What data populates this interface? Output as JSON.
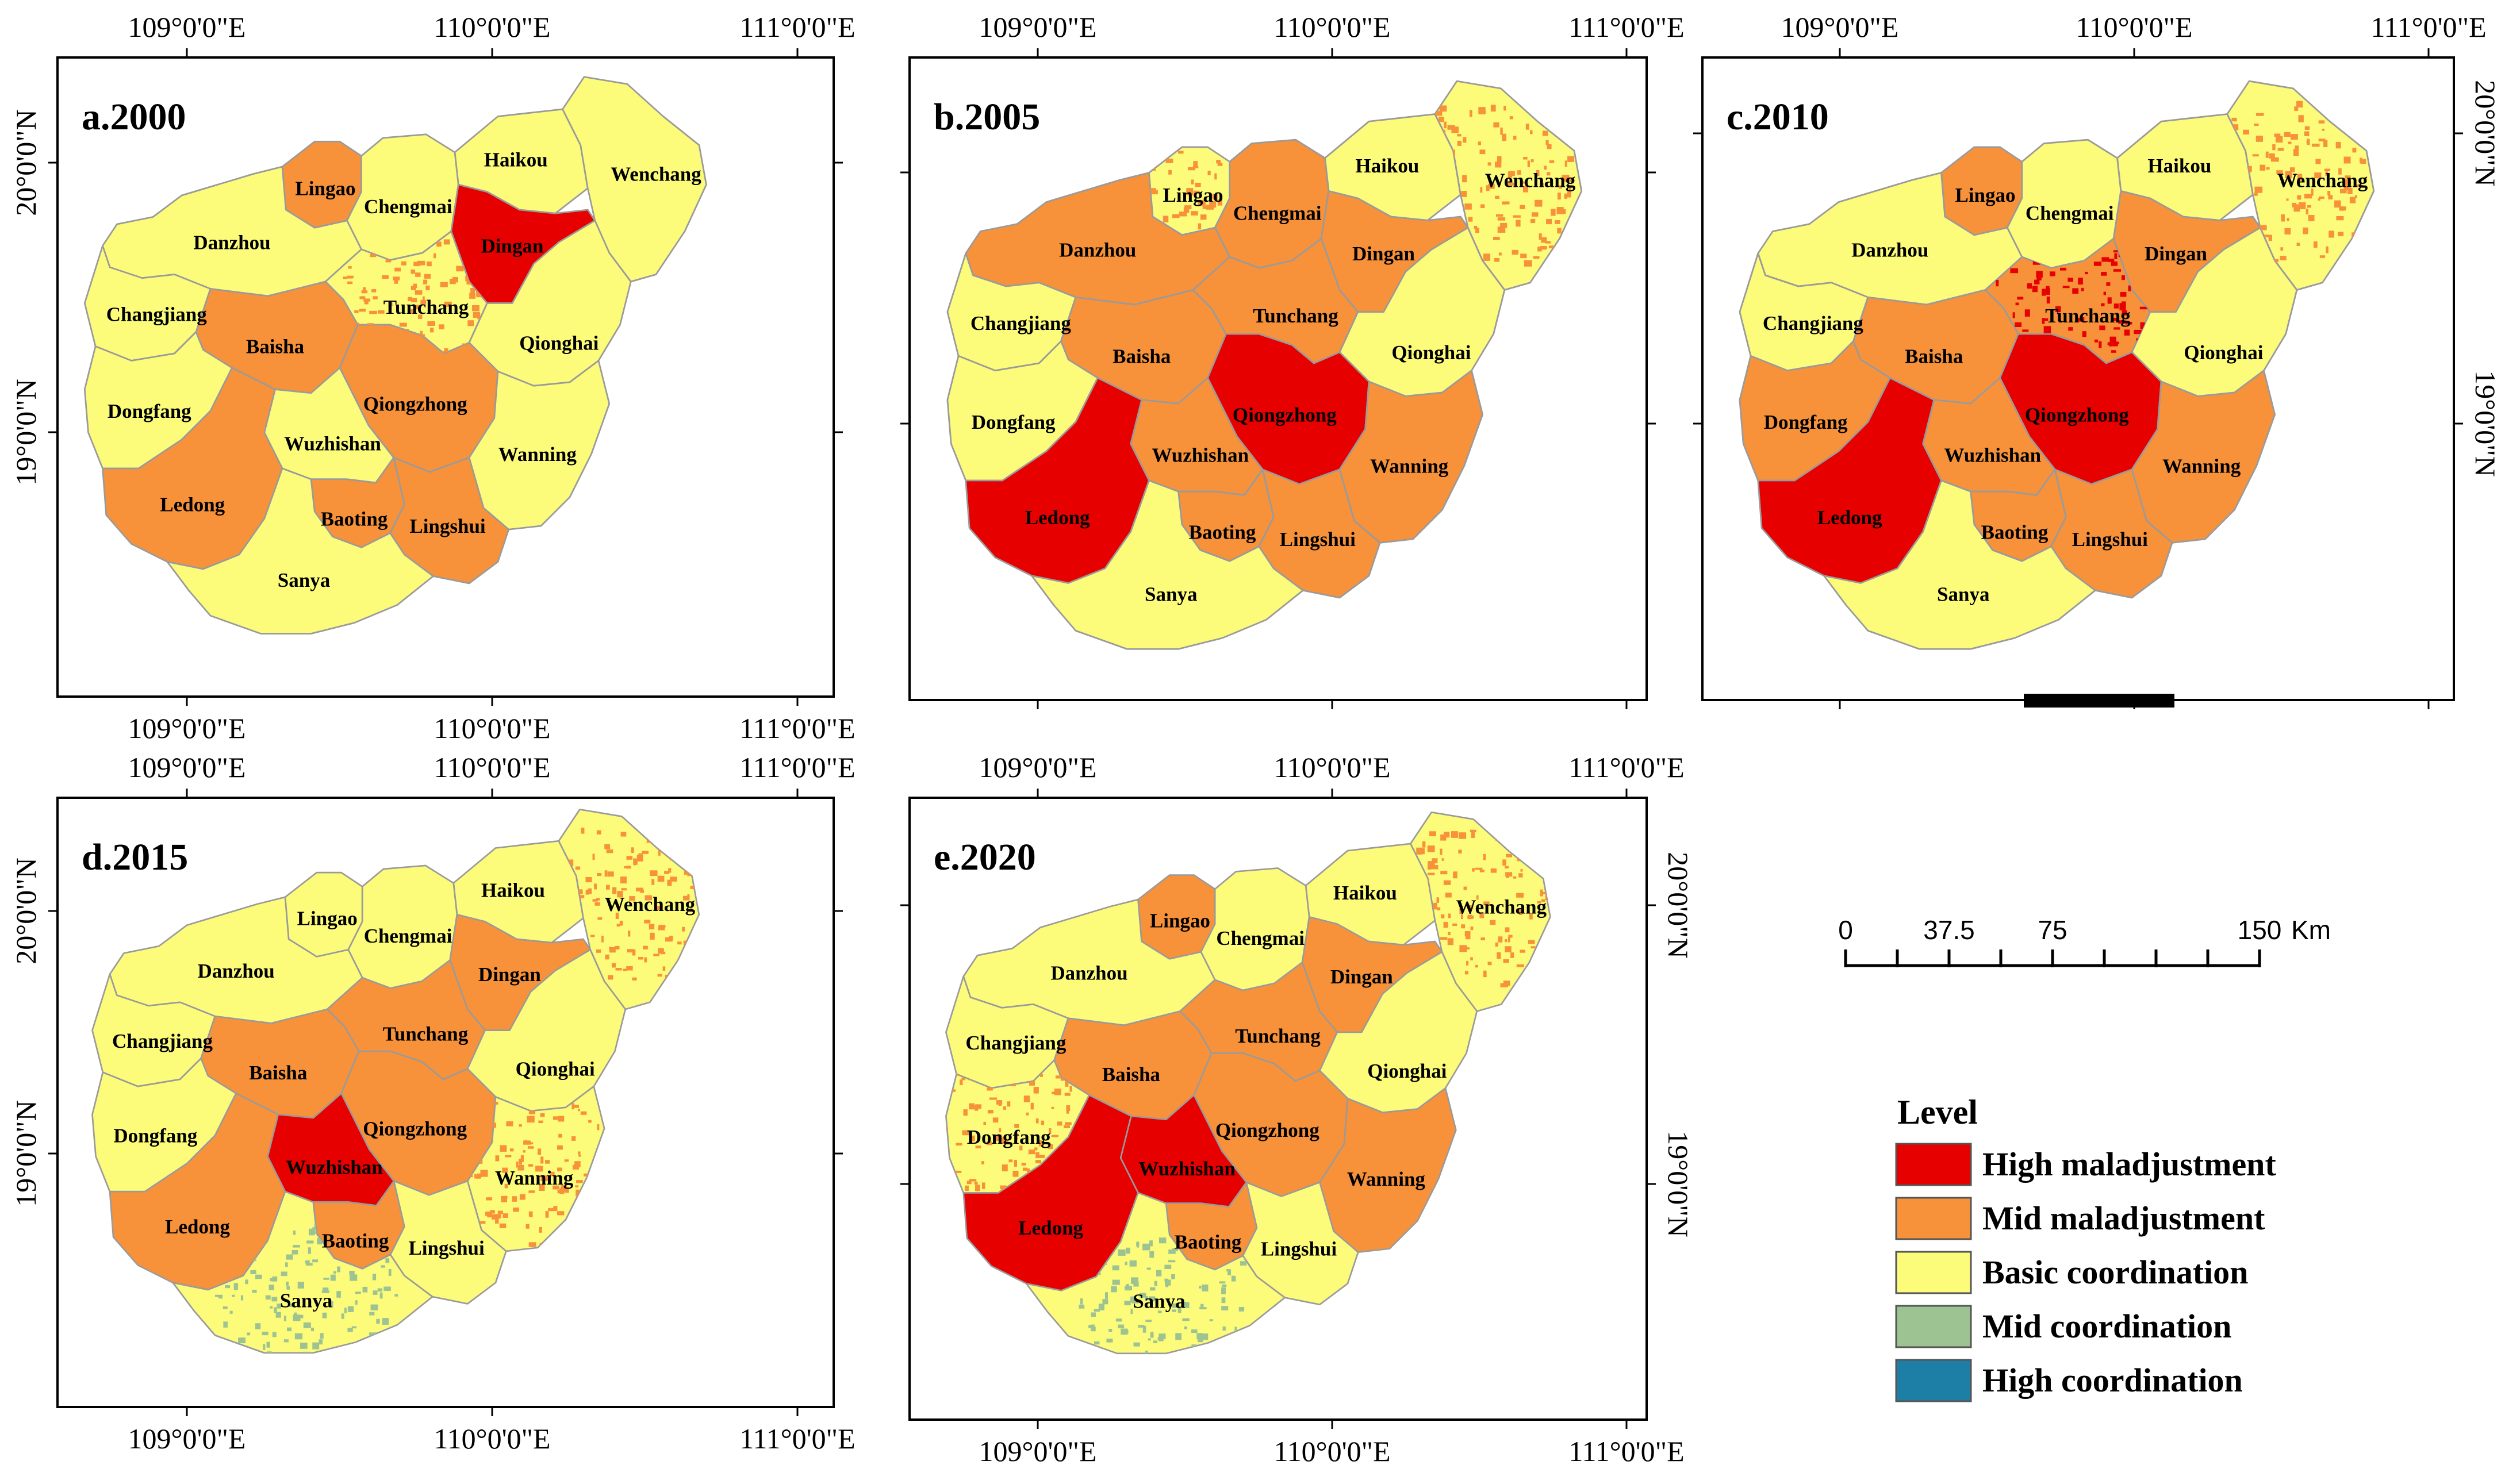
{
  "colors": {
    "high_maladjustment": "#E60000",
    "mid_maladjustment": "#F7923A",
    "basic_coordination": "#FCFB7A",
    "mid_coordination": "#9DC393",
    "high_coordination": "#1E7FA6",
    "boundary": "#9a9a9a",
    "frame": "#000000"
  },
  "axis_labels": {
    "lon_109": "109°0'0\"E",
    "lon_110": "110°0'0\"E",
    "lon_111": "111°0'0\"E",
    "lat_20": "20°0'0\"N",
    "lat_19": "19°0'0\"N"
  },
  "panels": [
    {
      "label": "a.2000",
      "lat_side": "left",
      "levels": {
        "Haikou": "basic_coordination",
        "Wenchang": "basic_coordination",
        "Lingao": "mid_maladjustment",
        "Chengmai": "basic_coordination",
        "Dingan": "high_maladjustment",
        "Danzhou": "basic_coordination",
        "Tunchang": "basic_coordination",
        "Qionghai": "basic_coordination",
        "Changjiang": "basic_coordination",
        "Baisha": "mid_maladjustment",
        "Qiongzhong": "mid_maladjustment",
        "Dongfang": "basic_coordination",
        "Wanning": "basic_coordination",
        "Wuzhishan": "basic_coordination",
        "Ledong": "mid_maladjustment",
        "Baoting": "mid_maladjustment",
        "Lingshui": "mid_maladjustment",
        "Sanya": "basic_coordination"
      },
      "speckles": [
        {
          "county": "Tunchang",
          "level": "mid_maladjustment"
        }
      ]
    },
    {
      "label": "b.2005",
      "lat_side": "none",
      "levels": {
        "Haikou": "basic_coordination",
        "Wenchang": "basic_coordination",
        "Lingao": "basic_coordination",
        "Chengmai": "mid_maladjustment",
        "Dingan": "mid_maladjustment",
        "Danzhou": "mid_maladjustment",
        "Tunchang": "mid_maladjustment",
        "Qionghai": "basic_coordination",
        "Changjiang": "basic_coordination",
        "Baisha": "mid_maladjustment",
        "Qiongzhong": "high_maladjustment",
        "Dongfang": "basic_coordination",
        "Wanning": "mid_maladjustment",
        "Wuzhishan": "mid_maladjustment",
        "Ledong": "high_maladjustment",
        "Baoting": "mid_maladjustment",
        "Lingshui": "mid_maladjustment",
        "Sanya": "basic_coordination"
      },
      "speckles": [
        {
          "county": "Lingao",
          "level": "mid_maladjustment"
        },
        {
          "county": "Wenchang",
          "level": "mid_maladjustment"
        }
      ]
    },
    {
      "label": "c.2010",
      "lat_side": "right",
      "levels": {
        "Haikou": "basic_coordination",
        "Wenchang": "basic_coordination",
        "Lingao": "mid_maladjustment",
        "Chengmai": "basic_coordination",
        "Dingan": "mid_maladjustment",
        "Danzhou": "basic_coordination",
        "Tunchang": "mid_maladjustment",
        "Qionghai": "basic_coordination",
        "Changjiang": "basic_coordination",
        "Baisha": "mid_maladjustment",
        "Qiongzhong": "high_maladjustment",
        "Dongfang": "mid_maladjustment",
        "Wanning": "mid_maladjustment",
        "Wuzhishan": "mid_maladjustment",
        "Ledong": "high_maladjustment",
        "Baoting": "mid_maladjustment",
        "Lingshui": "mid_maladjustment",
        "Sanya": "basic_coordination"
      },
      "speckles": [
        {
          "county": "Tunchang",
          "level": "high_maladjustment"
        },
        {
          "county": "Wenchang",
          "level": "mid_maladjustment"
        }
      ]
    },
    {
      "label": "d.2015",
      "lat_side": "left",
      "levels": {
        "Haikou": "basic_coordination",
        "Wenchang": "basic_coordination",
        "Lingao": "basic_coordination",
        "Chengmai": "basic_coordination",
        "Dingan": "mid_maladjustment",
        "Danzhou": "basic_coordination",
        "Tunchang": "mid_maladjustment",
        "Qionghai": "basic_coordination",
        "Changjiang": "basic_coordination",
        "Baisha": "mid_maladjustment",
        "Qiongzhong": "mid_maladjustment",
        "Dongfang": "basic_coordination",
        "Wanning": "basic_coordination",
        "Wuzhishan": "high_maladjustment",
        "Ledong": "mid_maladjustment",
        "Baoting": "mid_maladjustment",
        "Lingshui": "basic_coordination",
        "Sanya": "basic_coordination"
      },
      "speckles": [
        {
          "county": "Wenchang",
          "level": "mid_maladjustment"
        },
        {
          "county": "Wanning",
          "level": "mid_maladjustment"
        },
        {
          "county": "Sanya",
          "level": "mid_coordination"
        }
      ]
    },
    {
      "label": "e.2020",
      "lat_side": "right",
      "levels": {
        "Haikou": "basic_coordination",
        "Wenchang": "basic_coordination",
        "Lingao": "mid_maladjustment",
        "Chengmai": "basic_coordination",
        "Dingan": "mid_maladjustment",
        "Danzhou": "basic_coordination",
        "Tunchang": "mid_maladjustment",
        "Qionghai": "basic_coordination",
        "Changjiang": "basic_coordination",
        "Baisha": "mid_maladjustment",
        "Qiongzhong": "mid_maladjustment",
        "Dongfang": "basic_coordination",
        "Wanning": "mid_maladjustment",
        "Wuzhishan": "high_maladjustment",
        "Ledong": "high_maladjustment",
        "Baoting": "mid_maladjustment",
        "Lingshui": "basic_coordination",
        "Sanya": "basic_coordination"
      },
      "speckles": [
        {
          "county": "Dongfang",
          "level": "mid_maladjustment"
        },
        {
          "county": "Wenchang",
          "level": "mid_maladjustment"
        },
        {
          "county": "Sanya",
          "level": "mid_coordination"
        }
      ]
    }
  ],
  "legend": {
    "title": "Level",
    "items": [
      {
        "key": "high_maladjustment",
        "label": "High maladjustment"
      },
      {
        "key": "mid_maladjustment",
        "label": "Mid maladjustment"
      },
      {
        "key": "basic_coordination",
        "label": "Basic coordination"
      },
      {
        "key": "mid_coordination",
        "label": "Mid coordination"
      },
      {
        "key": "high_coordination",
        "label": "High coordination"
      }
    ]
  },
  "scale_bar": {
    "ticks": [
      "0",
      "37.5",
      "75",
      "150"
    ],
    "unit": "Km"
  }
}
